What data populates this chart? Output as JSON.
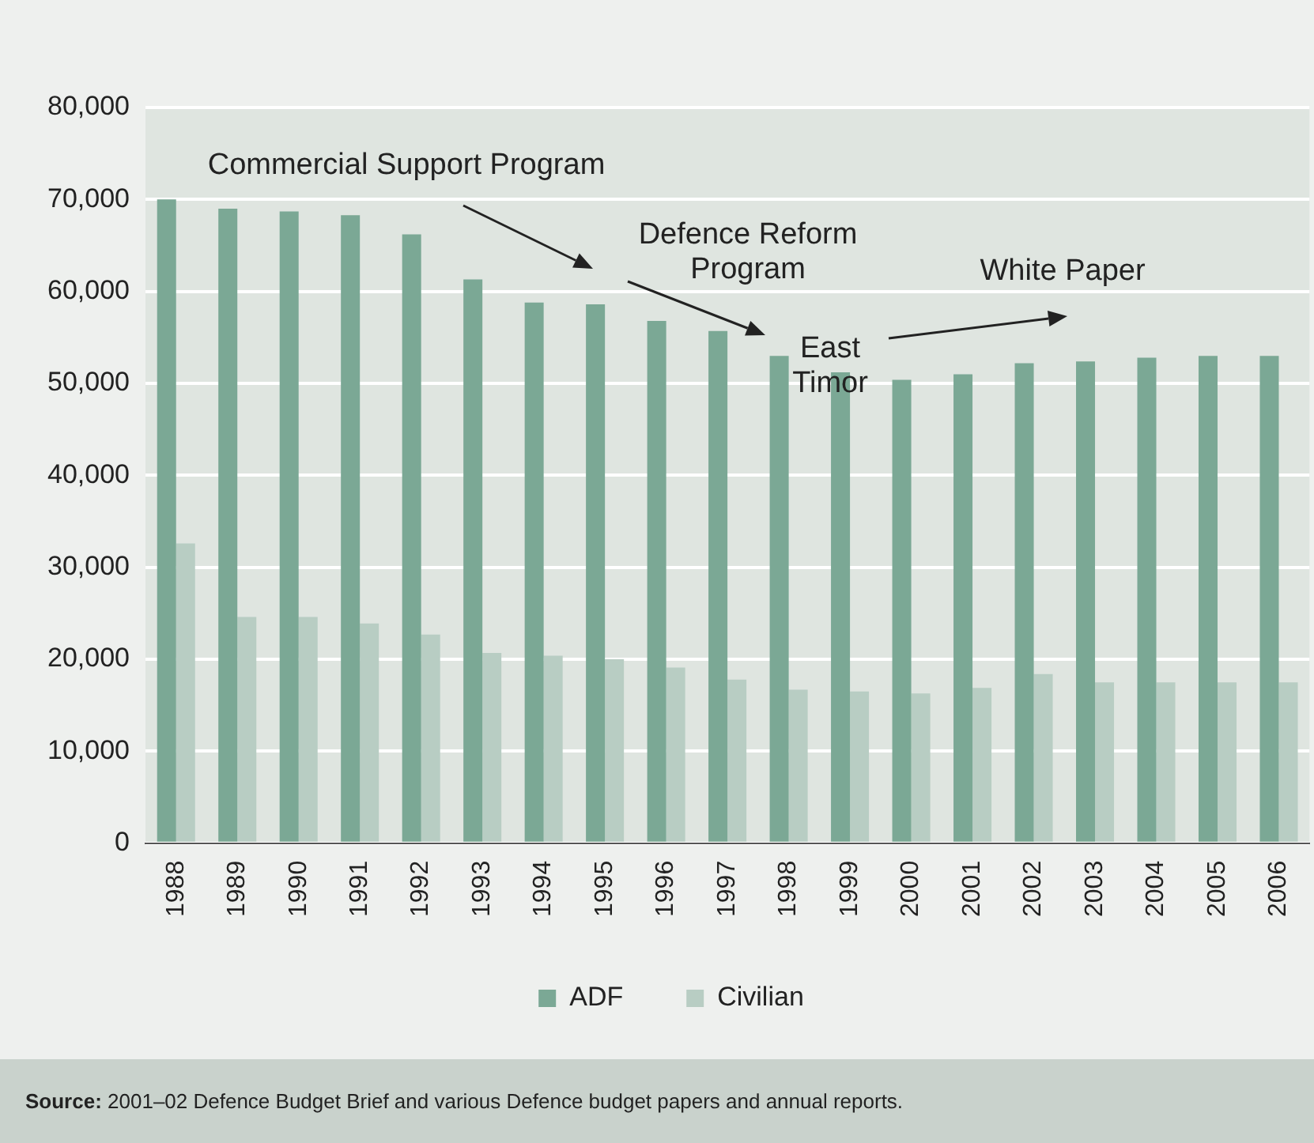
{
  "chart_data": {
    "type": "bar",
    "categories": [
      "1988",
      "1989",
      "1990",
      "1991",
      "1992",
      "1993",
      "1994",
      "1995",
      "1996",
      "1997",
      "1998",
      "1999",
      "2000",
      "2001",
      "2002",
      "2003",
      "2004",
      "2005",
      "2006"
    ],
    "series": [
      {
        "name": "ADF",
        "color": "#7ba895",
        "values": [
          70000,
          69000,
          68700,
          68300,
          66200,
          61300,
          58800,
          58600,
          56800,
          55700,
          53000,
          51200,
          50400,
          51000,
          52200,
          52400,
          52800,
          53000,
          53000
        ]
      },
      {
        "name": "Civilian",
        "color": "#b8cdc3",
        "values": [
          32600,
          24600,
          24600,
          23900,
          22700,
          20700,
          20400,
          20000,
          19100,
          17800,
          16700,
          16500,
          16300,
          16900,
          18400,
          17500,
          17500,
          17500,
          17500
        ]
      }
    ],
    "ylim": [
      0,
      80000
    ],
    "yticks": [
      0,
      {
        "value": 10000,
        "label": "10,000"
      },
      {
        "value": 20000,
        "label": "20,000"
      },
      {
        "value": 30000,
        "label": "30,000"
      },
      {
        "value": 40000,
        "label": "40,000"
      },
      {
        "value": 50000,
        "label": "50,000"
      },
      {
        "value": 60000,
        "label": "60,000"
      },
      {
        "value": 70000,
        "label": "70,000"
      },
      {
        "value": 80000,
        "label": "80,000"
      }
    ],
    "grid": "y",
    "legend": "bottom",
    "annotations": [
      "Commercial Support Program",
      "Defence Reform Program",
      "East Timor",
      "White Paper",
      "Source: 2001–02 Defence Budget Brief and various Defence budget papers and annual reports."
    ]
  }
}
